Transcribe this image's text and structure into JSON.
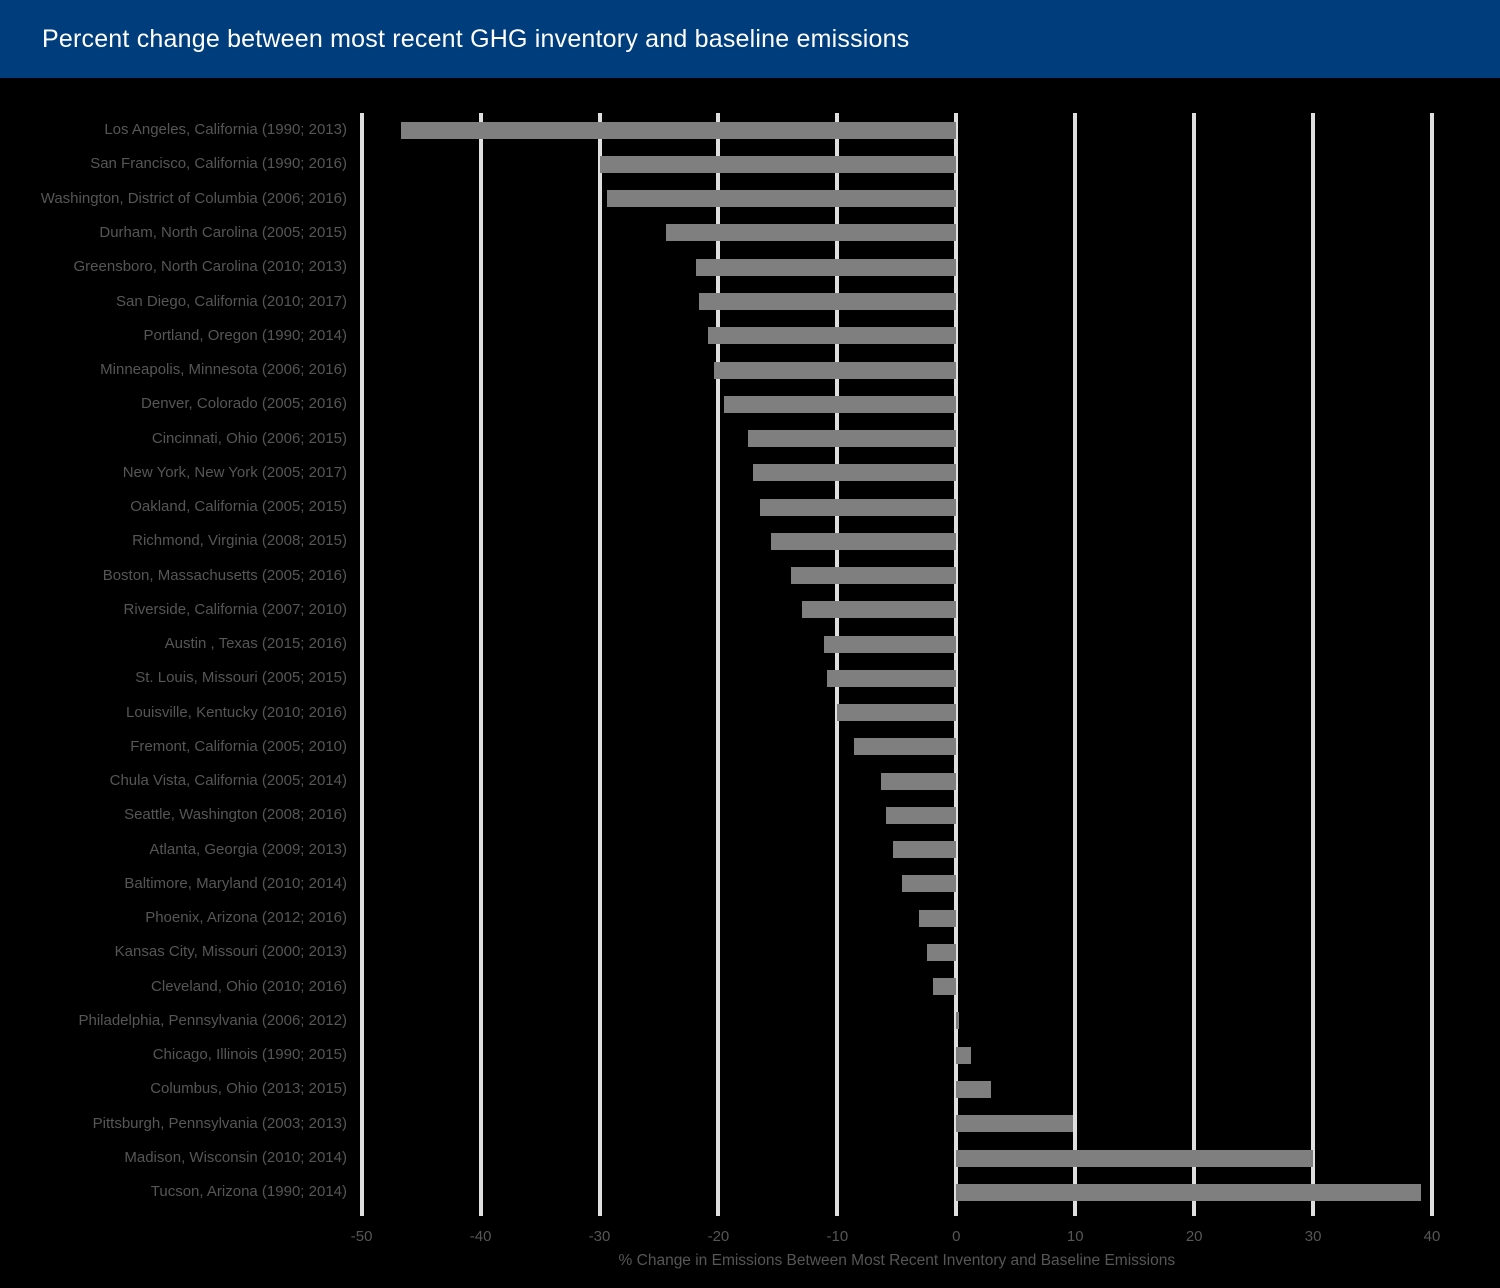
{
  "header": {
    "title": "Percent change between most recent GHG inventory and baseline emissions"
  },
  "colors": {
    "header_background": "#003D7D",
    "title_text": "#FFFFFF",
    "page_background": "#000000",
    "bar": "#7F7F7F",
    "gridline": "#DFDFDF",
    "label_text": "#565656"
  },
  "chart_data": {
    "type": "bar",
    "orientation": "horizontal",
    "title": "Percent change between most recent GHG inventory and baseline emissions",
    "xlabel": "% Change in Emissions Between Most Recent Inventory and Baseline Emissions",
    "ylabel": "",
    "xlim": [
      -55,
      44
    ],
    "grid": true,
    "legend": false,
    "xticks": [
      -50,
      -40,
      -30,
      -20,
      -10,
      0,
      10,
      20,
      30,
      40
    ],
    "categories": [
      "Los Angeles, California (1990; 2013)",
      "San Francisco, California (1990; 2016)",
      "Washington, District of Columbia (2006; 2016)",
      "Durham, North Carolina (2005; 2015)",
      "Greensboro, North Carolina (2010; 2013)",
      "San Diego, California (2010; 2017)",
      "Portland, Oregon (1990; 2014)",
      "Minneapolis, Minnesota (2006; 2016)",
      "Denver, Colorado (2005; 2016)",
      "Cincinnati, Ohio (2006; 2015)",
      "New York, New York (2005; 2017)",
      "Oakland, California (2005; 2015)",
      "Richmond, Virginia (2008; 2015)",
      "Boston, Massachusetts (2005; 2016)",
      "Riverside, California (2007; 2010)",
      "Austin , Texas (2015; 2016)",
      "St. Louis, Missouri (2005; 2015)",
      "Louisville, Kentucky (2010; 2016)",
      "Fremont, California (2005; 2010)",
      "Chula Vista, California (2005; 2014)",
      "Seattle, Washington (2008; 2016)",
      "Atlanta, Georgia (2009; 2013)",
      "Baltimore, Maryland (2010; 2014)",
      "Phoenix, Arizona (2012; 2016)",
      "Kansas City, Missouri (2000; 2013)",
      "Cleveland, Ohio (2010; 2016)",
      "Philadelphia, Pennsylvania (2006; 2012)",
      "Chicago, Illinois (1990; 2015)",
      "Columbus, Ohio (2013; 2015)",
      "Pittsburgh, Pennsylvania (2003; 2013)",
      "Madison, Wisconsin (2010; 2014)",
      "Tucson, Arizona (1990; 2014)"
    ],
    "values": [
      -46.7,
      -30.0,
      -29.4,
      -24.4,
      -21.9,
      -21.6,
      -20.9,
      -20.4,
      -19.5,
      -17.5,
      -17.1,
      -16.5,
      -15.6,
      -13.9,
      -13.0,
      -11.1,
      -10.9,
      -10.0,
      -8.6,
      -6.3,
      -5.9,
      -5.3,
      -4.6,
      -3.1,
      -2.5,
      -2.0,
      0.2,
      1.2,
      2.9,
      9.8,
      30.0,
      39.1
    ]
  }
}
